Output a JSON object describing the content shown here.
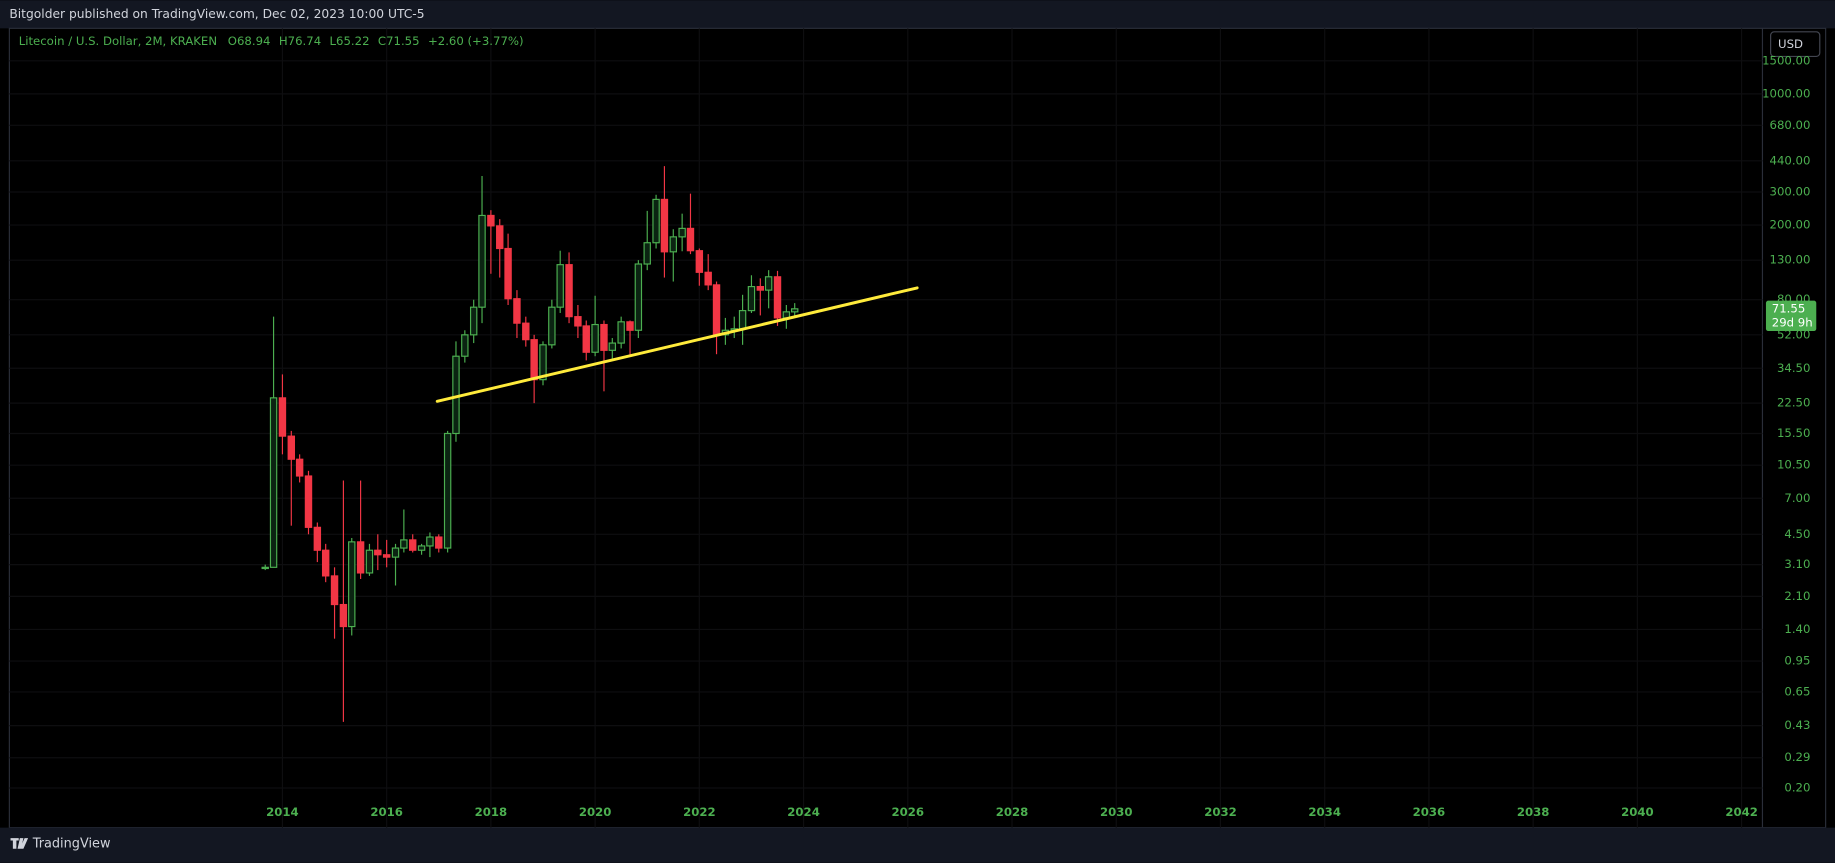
{
  "header": "Bitgolder published on TradingView.com, Dec 02, 2023 10:00 UTC-5",
  "currency_button": "USD",
  "footer_brand": "TradingView",
  "chart_data": {
    "type": "candlestick",
    "title": "Litecoin / U.S. Dollar, 2M, KRAKEN",
    "legend_labels": [
      "O",
      "H",
      "L",
      "C"
    ],
    "change": "+2.60 (+3.77%)",
    "countdown": "29d 9h",
    "log_scale": true,
    "grid": true,
    "up_color": "#4caf50",
    "down_color": "#f23645",
    "x": [
      2013.67,
      2013.83,
      2014.0,
      2014.17,
      2014.33,
      2014.5,
      2014.67,
      2014.83,
      2015.0,
      2015.17,
      2015.33,
      2015.5,
      2015.67,
      2015.83,
      2016.0,
      2016.17,
      2016.33,
      2016.5,
      2016.67,
      2016.83,
      2017.0,
      2017.17,
      2017.33,
      2017.5,
      2017.67,
      2017.83,
      2018.0,
      2018.17,
      2018.33,
      2018.5,
      2018.67,
      2018.83,
      2019.0,
      2019.17,
      2019.33,
      2019.5,
      2019.67,
      2019.83,
      2020.0,
      2020.17,
      2020.33,
      2020.5,
      2020.67,
      2020.83,
      2021.0,
      2021.17,
      2021.33,
      2021.5,
      2021.67,
      2021.83,
      2022.0,
      2022.17,
      2022.33,
      2022.5,
      2022.67,
      2022.83,
      2023.0,
      2023.17,
      2023.33,
      2023.5,
      2023.67,
      2023.83
    ],
    "open": [
      3.0,
      3.0,
      24,
      15,
      11.3,
      9.2,
      4.9,
      3.7,
      2.7,
      1.9,
      1.45,
      4.1,
      2.8,
      3.7,
      3.5,
      3.4,
      3.8,
      4.2,
      3.7,
      3.9,
      4.35,
      3.8,
      15.5,
      40,
      52,
      73,
      225,
      198,
      150,
      81,
      60,
      49,
      30,
      46,
      73,
      123,
      65,
      58,
      42,
      59,
      43,
      47,
      61,
      55,
      124,
      161,
      274,
      144,
      173,
      192,
      146,
      112,
      96,
      52,
      55,
      56,
      70,
      94,
      90,
      106,
      64,
      68.94
    ],
    "high": [
      3.1,
      65,
      32,
      16,
      12,
      9.8,
      5.2,
      4.0,
      3.0,
      8.7,
      4.3,
      8.7,
      4.0,
      4.5,
      4.2,
      4.0,
      6.1,
      4.5,
      4.0,
      4.6,
      4.5,
      16,
      48,
      55,
      80,
      365,
      240,
      215,
      180,
      90,
      65,
      52,
      48,
      80,
      146,
      143,
      75,
      62,
      84,
      62,
      50,
      65,
      62,
      130,
      238,
      290,
      412,
      190,
      230,
      294,
      150,
      140,
      100,
      64,
      65,
      85,
      108,
      104,
      115,
      114,
      75,
      76.74
    ],
    "low": [
      2.9,
      3.0,
      12,
      5,
      8.5,
      4.5,
      3.2,
      2.5,
      1.25,
      0.45,
      1.3,
      2.6,
      2.7,
      2.9,
      3.0,
      2.4,
      3.6,
      3.6,
      3.5,
      3.4,
      3.6,
      3.6,
      14,
      37,
      47,
      60,
      110,
      105,
      75,
      50,
      45,
      22.5,
      28,
      44,
      68,
      60,
      50,
      38,
      40,
      26,
      38,
      44,
      40,
      50,
      115,
      150,
      105,
      100,
      145,
      140,
      95,
      90,
      41,
      46,
      50,
      46,
      68,
      66,
      72,
      58,
      56,
      65.22
    ],
    "close": [
      3.0,
      24,
      15,
      11.3,
      9.2,
      4.9,
      3.7,
      2.7,
      1.9,
      1.45,
      4.1,
      2.8,
      3.7,
      3.5,
      3.4,
      3.8,
      4.2,
      3.7,
      3.9,
      4.35,
      3.8,
      15.5,
      40,
      52,
      73,
      225,
      198,
      150,
      81,
      60,
      49,
      30,
      46,
      73,
      123,
      65,
      58,
      42,
      59,
      43,
      47,
      61,
      55,
      124,
      161,
      274,
      144,
      173,
      192,
      146,
      112,
      96,
      52,
      55,
      56,
      70,
      94,
      90,
      106,
      64,
      68.95,
      71.55
    ],
    "xlim": [
      2008.76,
      2042.4
    ],
    "xticks": [
      2014,
      2016,
      2018,
      2020,
      2022,
      2024,
      2026,
      2028,
      2030,
      2032,
      2034,
      2036,
      2038,
      2040,
      2042
    ],
    "ylim": [
      0.123,
      2235
    ],
    "yticks": [
      {
        "value": 1500,
        "label": "1500.00"
      },
      {
        "value": 1000,
        "label": "1000.00"
      },
      {
        "value": 680,
        "label": "680.00"
      },
      {
        "value": 440,
        "label": "440.00"
      },
      {
        "value": 300,
        "label": "300.00"
      },
      {
        "value": 200,
        "label": "200.00"
      },
      {
        "value": 130,
        "label": "130.00"
      },
      {
        "value": 80,
        "label": "80.00"
      },
      {
        "value": 52,
        "label": "52.00"
      },
      {
        "value": 34.5,
        "label": "34.50"
      },
      {
        "value": 22.5,
        "label": "22.50"
      },
      {
        "value": 15.5,
        "label": "15.50"
      },
      {
        "value": 10.5,
        "label": "10.50"
      },
      {
        "value": 7,
        "label": "7.00"
      },
      {
        "value": 4.5,
        "label": "4.50"
      },
      {
        "value": 3.1,
        "label": "3.10"
      },
      {
        "value": 2.1,
        "label": "2.10"
      },
      {
        "value": 1.4,
        "label": "1.40"
      },
      {
        "value": 0.95,
        "label": "0.95"
      },
      {
        "value": 0.65,
        "label": "0.65"
      },
      {
        "value": 0.43,
        "label": "0.43"
      },
      {
        "value": 0.29,
        "label": "0.29"
      },
      {
        "value": 0.2,
        "label": "0.20"
      }
    ],
    "trendline": {
      "x": [
        2016.97,
        2026.18
      ],
      "y": [
        23,
        92.5
      ],
      "color": "#ffeb3b"
    }
  }
}
